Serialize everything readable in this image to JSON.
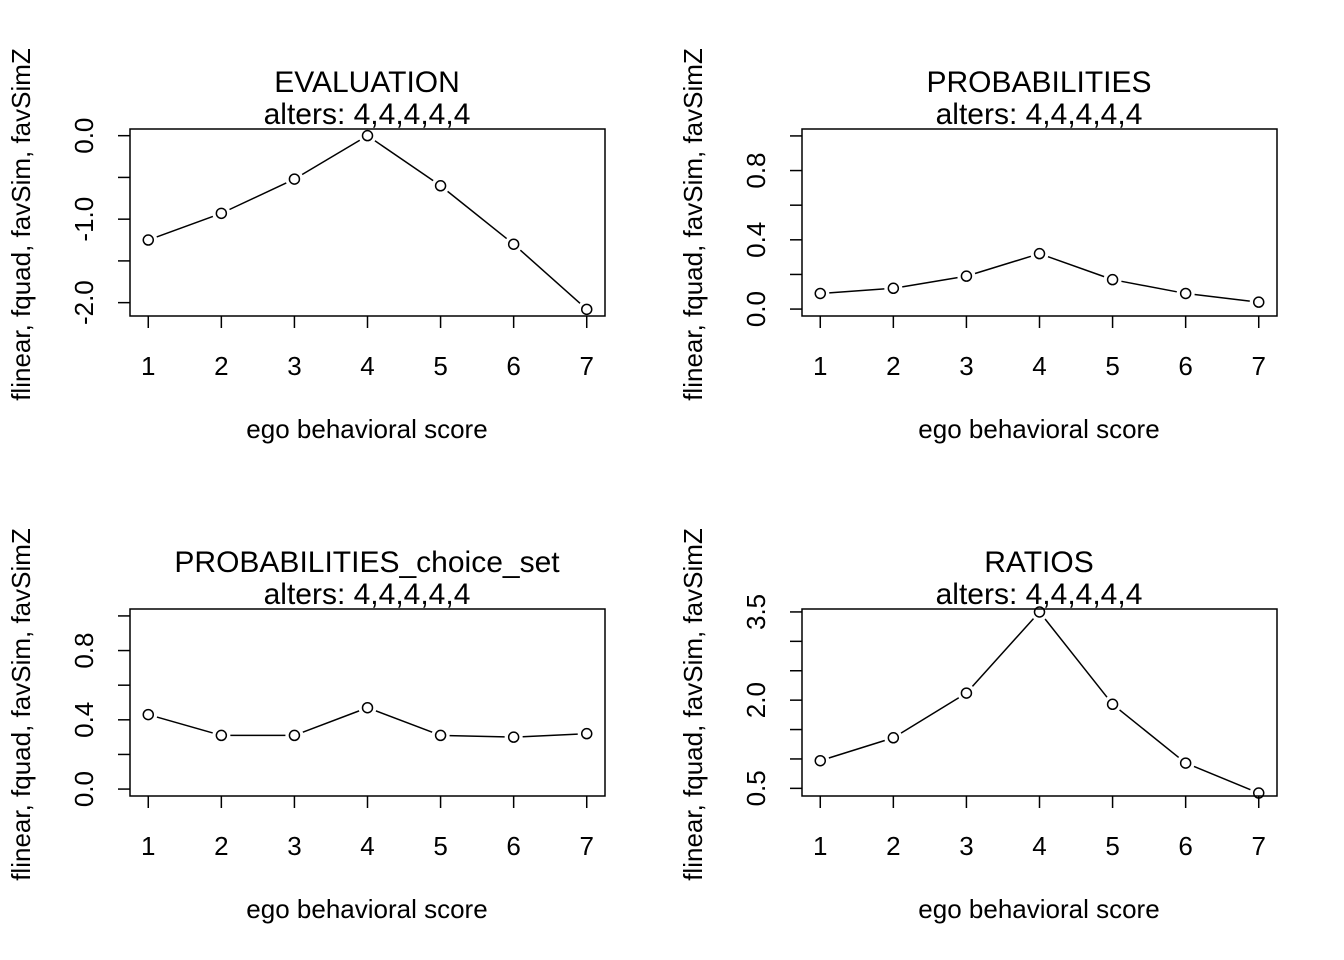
{
  "chart_data": [
    {
      "type": "line",
      "title": "EVALUATION",
      "subtitle": "alters: 4,4,4,4,4",
      "xlabel": "ego behavioral score",
      "ylabel": "flinear, fquad, favSim, favSimZ",
      "x": [
        1,
        2,
        3,
        4,
        5,
        6,
        7
      ],
      "series": [
        {
          "values": [
            -1.25,
            -0.93,
            -0.52,
            0.0,
            -0.6,
            -1.3,
            -2.08
          ]
        }
      ],
      "xlim": [
        0.75,
        7.25
      ],
      "ylim": [
        -2.16,
        0.08
      ],
      "yticks": [
        0.0,
        -0.5,
        -1.0,
        -1.5,
        -2.0
      ],
      "ytick_labels": [
        "0.0",
        "",
        "-1.0",
        "",
        "-2.0"
      ],
      "grid": false,
      "color": "#000000"
    },
    {
      "type": "line",
      "title": "PROBABILITIES",
      "subtitle": "alters: 4,4,4,4,4",
      "xlabel": "ego behavioral score",
      "ylabel": "flinear, fquad, favSim, favSimZ",
      "x": [
        1,
        2,
        3,
        4,
        5,
        6,
        7
      ],
      "series": [
        {
          "values": [
            0.09,
            0.12,
            0.19,
            0.32,
            0.17,
            0.09,
            0.04
          ]
        }
      ],
      "xlim": [
        0.75,
        7.25
      ],
      "ylim": [
        -0.04,
        1.04
      ],
      "yticks": [
        0.0,
        0.2,
        0.4,
        0.6,
        0.8,
        1.0
      ],
      "ytick_labels": [
        "0.0",
        "",
        "0.4",
        "",
        "0.8",
        ""
      ],
      "grid": false,
      "color": "#000000"
    },
    {
      "type": "line",
      "title": "PROBABILITIES_choice_set",
      "subtitle": "alters: 4,4,4,4,4",
      "xlabel": "ego behavioral score",
      "ylabel": "flinear, fquad, favSim, favSimZ",
      "x": [
        1,
        2,
        3,
        4,
        5,
        6,
        7
      ],
      "series": [
        {
          "values": [
            0.43,
            0.31,
            0.31,
            0.47,
            0.31,
            0.3,
            0.32
          ]
        }
      ],
      "xlim": [
        0.75,
        7.25
      ],
      "ylim": [
        -0.04,
        1.04
      ],
      "yticks": [
        0.0,
        0.2,
        0.4,
        0.6,
        0.8,
        1.0
      ],
      "ytick_labels": [
        "0.0",
        "",
        "0.4",
        "",
        "0.8",
        ""
      ],
      "grid": false,
      "color": "#000000"
    },
    {
      "type": "line",
      "title": "RATIOS",
      "subtitle": "alters: 4,4,4,4,4",
      "xlabel": "ego behavioral score",
      "ylabel": "flinear, fquad, favSim, favSimZ",
      "x": [
        1,
        2,
        3,
        4,
        5,
        6,
        7
      ],
      "series": [
        {
          "values": [
            0.97,
            1.36,
            2.12,
            3.5,
            1.93,
            0.93,
            0.42
          ]
        }
      ],
      "xlim": [
        0.75,
        7.25
      ],
      "ylim": [
        0.37,
        3.55
      ],
      "yticks": [
        0.5,
        1.0,
        1.5,
        2.0,
        2.5,
        3.0,
        3.5
      ],
      "ytick_labels": [
        "0.5",
        "",
        "",
        "2.0",
        "",
        "",
        "3.5"
      ],
      "grid": false,
      "color": "#000000"
    }
  ]
}
